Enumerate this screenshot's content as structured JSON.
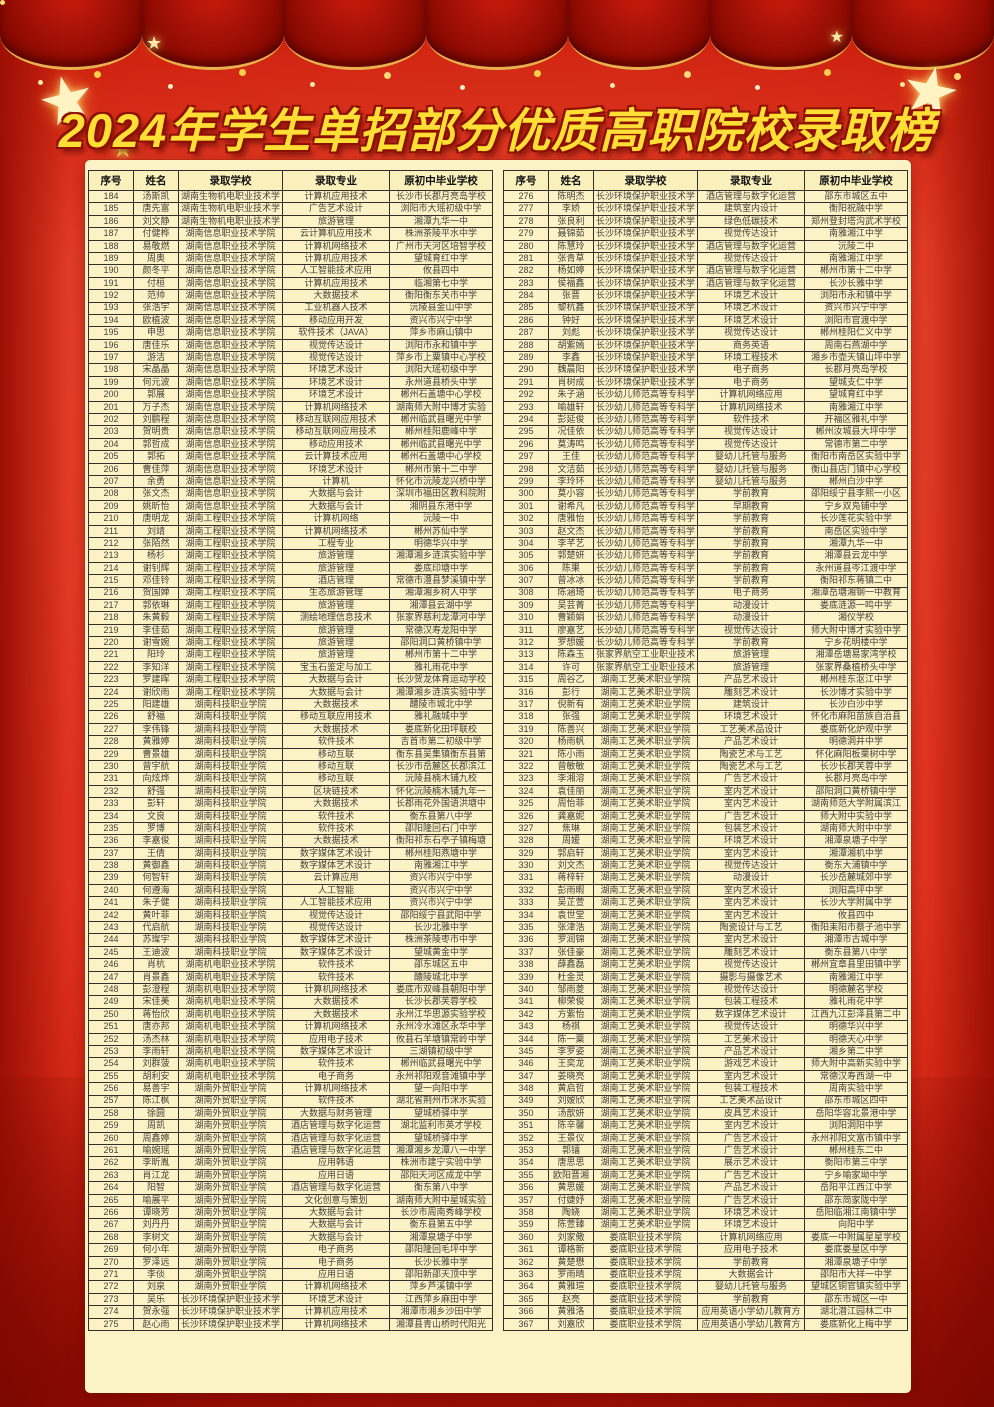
{
  "title": "2024年学生单招部分优质高职院校录取榜",
  "colors": {
    "background_red": "#e03522",
    "curtain_red": "#8c0a02",
    "panel_yellow": "#fbf3c6",
    "title_yellow": "#ffdf35",
    "gold_trim": "#e9b14e",
    "table_border": "#33302b"
  },
  "table_headers": [
    "序号",
    "姓名",
    "录取学校",
    "录取专业",
    "原初中毕业学校"
  ],
  "left_rows": [
    [
      "184",
      "汤斯凯",
      "湖南生物机电职业技术学",
      "计算机应用技术",
      "长沙市长郡月亮岛学校"
    ],
    [
      "185",
      "唐先富",
      "湖南生物机电职业技术学",
      "广告艺术设计",
      "浏阳市大瑶初级中学"
    ],
    [
      "186",
      "刘文静",
      "湖南生物机电职业技术学",
      "旅游管理",
      "湘潭九华一中"
    ],
    [
      "187",
      "付健桦",
      "湖南信息职业技术学院",
      "云计算机应用技术",
      "株洲茶陵平水中学"
    ],
    [
      "188",
      "易敬燃",
      "湖南信息职业技术学院",
      "计算机网络技术",
      "广州市天河区培智学校"
    ],
    [
      "189",
      "周奥",
      "湖南信息职业技术学院",
      "计算机应用技术",
      "望城育红中学"
    ],
    [
      "190",
      "颜冬平",
      "湖南信息职业技术学院",
      "人工智能技术应用",
      "攸县四中"
    ],
    [
      "191",
      "付桓",
      "湖南信息职业技术学院",
      "计算机应用技术",
      "临湘第七中学"
    ],
    [
      "192",
      "范帅",
      "湖南信息职业技术学院",
      "大数据技术",
      "衡阳衡东关市中学"
    ],
    [
      "193",
      "张浩宇",
      "湖南信息职业技术学院",
      "工业机器人技术",
      "沅陵县金山中学"
    ],
    [
      "194",
      "欧植波",
      "湖南信息职业技术学院",
      "移动应用开发",
      "资兴市兴宁中学"
    ],
    [
      "195",
      "申思",
      "湖南信息职业技术学院",
      "软件技术（JAVA）",
      "萍乡市麻山镇中"
    ],
    [
      "196",
      "唐佳乐",
      "湖南信息职业技术学院",
      "视觉传达设计",
      "浏阳市永和镇中学"
    ],
    [
      "197",
      "游洁",
      "湖南信息职业技术学院",
      "视觉传达设计",
      "萍乡市上粟镇中心学校"
    ],
    [
      "198",
      "宋晶晶",
      "湖南信息职业技术学院",
      "环境艺术设计",
      "浏阳大瑶初级中学"
    ],
    [
      "199",
      "何元波",
      "湖南信息职业技术学院",
      "环境艺术设计",
      "永州道县桥头中学"
    ],
    [
      "200",
      "郭展",
      "湖南信息职业技术学院",
      "环境艺术设计",
      "郴州石盖塘中心学校"
    ],
    [
      "201",
      "万子杰",
      "湖南信息职业技术学院",
      "计算机网络技术",
      "湖南师大附中博才实验"
    ],
    [
      "202",
      "刘鹏程",
      "湖南信息职业技术学院",
      "移动互联网应用技术",
      "郴州临武县曙光中学"
    ],
    [
      "203",
      "贺明贵",
      "湖南信息职业技术学院",
      "移动互联网应用技术",
      "郴州桂阳鹿峰中学"
    ],
    [
      "204",
      "郭哲成",
      "湖南信息职业技术学院",
      "移动应用技术",
      "郴州临武县曙光中学"
    ],
    [
      "205",
      "郭拓",
      "湖南信息职业技术学院",
      "云计算技术应用",
      "郴州石盖塘中心学校"
    ],
    [
      "206",
      "曹佳萍",
      "湖南信息职业技术学院",
      "环境艺术设计",
      "郴州市第十二中学"
    ],
    [
      "207",
      "余勇",
      "湖南信息职业技术学院",
      "计算机",
      "怀化市沅陵龙兴桥中学"
    ],
    [
      "208",
      "张文杰",
      "湖南信息职业技术学院",
      "大数据与会计",
      "深圳市福田区教科院附"
    ],
    [
      "209",
      "姚昕怡",
      "湖南信息职业技术学院",
      "大数据与会计",
      "湘阴县东港中学"
    ],
    [
      "210",
      "唐明龙",
      "湖南工程职业技术学院",
      "计算机网络",
      "沅陵一中"
    ],
    [
      "211",
      "刘靖",
      "湖南工程职业技术学院",
      "计算机网络技术",
      "郴州苏仙中学"
    ],
    [
      "212",
      "张陌然",
      "湖南工程职业技术学院",
      "工程专业",
      "明德华兴中学"
    ],
    [
      "213",
      "杨杉",
      "湖南工程职业技术学院",
      "旅游管理",
      "湘潭湘乡涟滨实验中学"
    ],
    [
      "214",
      "谢钊辉",
      "湖南工程职业技术学院",
      "旅游管理",
      "娄底印塘中学"
    ],
    [
      "215",
      "邓佳铃",
      "湖南工程职业技术学院",
      "酒店管理",
      "常德市澧县梦溪镇中学"
    ],
    [
      "216",
      "贺国婵",
      "湖南工程职业技术学院",
      "生态旅游管理",
      "湘潭湘乡树人中学"
    ],
    [
      "217",
      "郭依琳",
      "湖南工程职业技术学院",
      "旅游管理",
      "湘潭县云湖中学"
    ],
    [
      "218",
      "朱黄毅",
      "湖南工程职业技术学院",
      "测绘地理信息技术",
      "张家界慈利龙潭河中学"
    ],
    [
      "219",
      "李佳茹",
      "湖南工程职业技术学院",
      "旅游管理",
      "常德汉寿龙阳中学"
    ],
    [
      "220",
      "谢雪婉",
      "湖南工程职业技术学院",
      "旅游管理",
      "邵阳洞口黄桥镇中学"
    ],
    [
      "221",
      "阳玲",
      "湖南工程职业技术学院",
      "旅游管理",
      "郴州市第十二中学"
    ],
    [
      "222",
      "李知洋",
      "湖南工程职业技术学院",
      "宝玉石鉴定与加工",
      "雅礼雨花中学"
    ],
    [
      "223",
      "罗建晖",
      "湖南工程职业技术学院",
      "大数据与会计",
      "长沙贺龙体育运动学校"
    ],
    [
      "224",
      "谢欣雨",
      "湖南工程职业技术学院",
      "大数据与会计",
      "湘潭湘乡涟滨实验中学"
    ],
    [
      "225",
      "阳建雄",
      "湖南科技职业学院",
      "大数据技术",
      "醴陵市城北中学"
    ],
    [
      "226",
      "舒福",
      "湖南科技职业学院",
      "移动互联应用技术",
      "雅礼融城中学"
    ],
    [
      "227",
      "李伟锋",
      "湖南科技职业学院",
      "大数据技术",
      "娄底新化田坪联校"
    ],
    [
      "228",
      "黄雅婷",
      "湖南科技职业学院",
      "软件技术",
      "吉首市第二初级中学"
    ],
    [
      "229",
      "曹景雄",
      "湖南科技职业学院",
      "移动互联",
      "衡东县吴集镇衡东县第"
    ],
    [
      "230",
      "曾宇航",
      "湖南科技职业学院",
      "移动互联",
      "长沙市岳麓区长郡滨江"
    ],
    [
      "231",
      "向炫烨",
      "湖南科技职业学院",
      "移动互联",
      "沅陵县楠木铺九校"
    ],
    [
      "232",
      "舒强",
      "湖南科技职业学院",
      "区块链技术",
      "怀化沅陵楠木铺九年一"
    ],
    [
      "233",
      "彭轩",
      "湖南科技职业学院",
      "大数据技术",
      "长郡雨花外国语洪塘中"
    ],
    [
      "234",
      "文良",
      "湖南科技职业学院",
      "软件技术",
      "衡东县第八中学"
    ],
    [
      "235",
      "罗博",
      "湖南科技职业学院",
      "软件技术",
      "邵阳隆回石门中学"
    ],
    [
      "236",
      "李嘉俊",
      "湖南科技职业学院",
      "大数据技术",
      "衡阳祁东石亭子镇梅塘"
    ],
    [
      "237",
      "王倩",
      "湖南科技职业学院",
      "数字媒体艺术设计",
      "郴州桂阳燕塘中学"
    ],
    [
      "238",
      "黄御鑫",
      "湖南科技职业学院",
      "数字媒体艺术设计",
      "南雅湘江中学"
    ],
    [
      "239",
      "何智轩",
      "湖南科技职业学院",
      "云计算应用",
      "资兴市兴宁中学"
    ],
    [
      "240",
      "何遵海",
      "湖南科技职业学院",
      "人工智能",
      "资兴市兴宁中学"
    ],
    [
      "241",
      "朱子健",
      "湖南科技职业学院",
      "人工智能技术应用",
      "资兴市兴宁中学"
    ],
    [
      "242",
      "黄叶菲",
      "湖南科技职业学院",
      "视觉传达设计",
      "邵阳绥宁县武阳中学"
    ],
    [
      "243",
      "代启航",
      "湖南科技职业学院",
      "视觉传达设计",
      "长沙北雅中学"
    ],
    [
      "244",
      "苏璨宇",
      "湖南科技职业学院",
      "数字媒体艺术设计",
      "株洲茶陵枣市中学"
    ],
    [
      "245",
      "王迪波",
      "湖南科技职业学院",
      "数字媒体艺术设计",
      "望城黄金中学"
    ],
    [
      "246",
      "肖杭",
      "湖南机电职业技术学院",
      "软件技术",
      "邵东城区五中"
    ],
    [
      "247",
      "肖景鑫",
      "湖南机电职业技术学院",
      "软件技术",
      "醴陵城北中学"
    ],
    [
      "248",
      "彭澄程",
      "湖南机电职业技术学院",
      "计算机网络技术",
      "娄底市双峰县朝阳中学"
    ],
    [
      "249",
      "宋佳美",
      "湖南机电职业技术学院",
      "大数据技术",
      "长沙长郡芙蓉学校"
    ],
    [
      "250",
      "蒋怡欣",
      "湖南机电职业技术学院",
      "大数据技术",
      "永州江华思源实验学校"
    ],
    [
      "251",
      "唐亦邦",
      "湖南机电职业技术学院",
      "计算机网络技术",
      "永州冷水滩区永华中学"
    ],
    [
      "252",
      "汤杰林",
      "湖南机电职业技术学院",
      "应用电子技术",
      "攸县石羊塘镇常岭中学"
    ],
    [
      "253",
      "李雨轩",
      "湖南机电职业技术学院",
      "数字媒体艺术设计",
      "三湖镇初级中学"
    ],
    [
      "254",
      "刘群菠",
      "湖南机电职业技术学院",
      "软件技术",
      "郴州临武县曙光中学"
    ],
    [
      "255",
      "胡利安",
      "湖南机电职业技术学院",
      "电子商务",
      "永州祁阳观音滩镇中学"
    ],
    [
      "256",
      "易善宇",
      "湖南外贸职业学院",
      "计算机网络技术",
      "望一向阳中学"
    ],
    [
      "257",
      "陈江枫",
      "湖南外贸职业学院",
      "软件技术",
      "湖北省荆州市洣水实验"
    ],
    [
      "258",
      "徐圆",
      "湖南外贸职业学院",
      "大数据与财务管理",
      "望城桥驿中学"
    ],
    [
      "259",
      "周凯",
      "湖南外贸职业学院",
      "酒店管理与数字化运营",
      "湖北监利市英才学校"
    ],
    [
      "260",
      "周鑫婷",
      "湖南外贸职业学院",
      "酒店管理与数字化运营",
      "望城桥驿中学"
    ],
    [
      "261",
      "喻婉瑶",
      "湖南外贸职业学院",
      "酒店管理与数字化运营",
      "湘潭湘乡龙潭八一中学"
    ],
    [
      "262",
      "李昕胤",
      "湖南外贸职业学院",
      "应用韩语",
      "株洲市建宁实验中学"
    ],
    [
      "263",
      "肖江龙",
      "湖南外贸职业学院",
      "应用日语",
      "邵阳天河区成龙中学"
    ],
    [
      "264",
      "阳智",
      "湖南外贸职业学院",
      "酒店管理与数字化运营",
      "衡东第八中学"
    ],
    [
      "265",
      "喻展平",
      "湖南外贸职业学院",
      "文化创意与策划",
      "湖南师大附中星城实验"
    ],
    [
      "266",
      "谭晓芳",
      "湖南外贸职业学院",
      "大数据与会计",
      "长沙市周南秀峰学校"
    ],
    [
      "267",
      "刘丹丹",
      "湖南外贸职业学院",
      "大数据与会计",
      "衡东县第五中学"
    ],
    [
      "268",
      "李树文",
      "湖南外贸职业学院",
      "大数据与会计",
      "湘潭泉塘子中学"
    ],
    [
      "269",
      "何小年",
      "湖南外贸职业学院",
      "电子商务",
      "邵阳隆回毛坪中学"
    ],
    [
      "270",
      "罗泽远",
      "湖南外贸职业学院",
      "电子商务",
      "长沙长雅中学"
    ],
    [
      "271",
      "李倓",
      "湖南外贸职业学院",
      "应用日语",
      "邵阳新邵天顶中学"
    ],
    [
      "272",
      "刘泉",
      "湖南外贸职业学院",
      "计算机网络技术",
      "萍乡芦溪镇中学"
    ],
    [
      "273",
      "吴乐",
      "长沙环境保护职业技术学",
      "环境艺术设计",
      "江西萍乡麻田中学"
    ],
    [
      "274",
      "贺永强",
      "长沙环境保护职业技术学",
      "计算机应用技术",
      "湘潭市湘乡沙田中学"
    ],
    [
      "275",
      "赵心雨",
      "长沙环境保护职业技术学",
      "计算机网络技术",
      "湘潭县青山桥时代阳光"
    ]
  ],
  "right_rows": [
    [
      "276",
      "陈明杰",
      "长沙环境保护职业技术学",
      "酒店管理与数字化运营",
      "邵东市城区五中"
    ],
    [
      "277",
      "李娇",
      "长沙环境保护职业技术学",
      "建筑室内设计",
      "衡阳祝融中学"
    ],
    [
      "278",
      "张良利",
      "长沙环境保护职业技术学",
      "绿色低碳技术",
      "郑州登封塔沟武术学校"
    ],
    [
      "279",
      "聂锦茹",
      "长沙环境保护职业技术学",
      "视觉传达设计",
      "南雅湘江中学"
    ],
    [
      "280",
      "陈慧玲",
      "长沙环境保护职业技术学",
      "酒店管理与数字化运营",
      "沅陵二中"
    ],
    [
      "281",
      "张青草",
      "长沙环境保护职业技术学",
      "视觉传达设计",
      "南雅湘江中学"
    ],
    [
      "282",
      "杨如婷",
      "长沙环境保护职业技术学",
      "酒店管理与数字化运营",
      "郴州市第十二中学"
    ],
    [
      "283",
      "侯福鑫",
      "长沙环境保护职业技术学",
      "酒店管理与数字化运营",
      "长沙长雅中学"
    ],
    [
      "284",
      "张晋",
      "长沙环境保护职业技术学",
      "环境艺术设计",
      "浏阳市永和镇中学"
    ],
    [
      "285",
      "黎杭鑫",
      "长沙环境保护职业技术学",
      "环境艺术设计",
      "资兴市兴宁中学"
    ],
    [
      "286",
      "钟好",
      "长沙环境保护职业技术学",
      "环境艺术设计",
      "浏阳市官渡中学"
    ],
    [
      "287",
      "刘彪",
      "长沙环境保护职业技术学",
      "视觉传达设计",
      "郴州桂阳仁义中学"
    ],
    [
      "288",
      "胡紫嫣",
      "长沙环境保护职业技术学",
      "商务英语",
      "周南石燕湖中学"
    ],
    [
      "289",
      "李鑫",
      "长沙环境保护职业技术学",
      "环境工程技术",
      "湘乡市壶天镇山坪中学"
    ],
    [
      "290",
      "魏晨阳",
      "长沙环境保护职业技术学",
      "电子商务",
      "长郡月亮岛学校"
    ],
    [
      "291",
      "肖树成",
      "长沙环境保护职业技术学",
      "电子商务",
      "望城支仁中学"
    ],
    [
      "292",
      "朱子涵",
      "长沙幼儿师范高等专科学",
      "计算机网络应用",
      "望城育红中学"
    ],
    [
      "293",
      "喻雄轩",
      "长沙幼儿师范高等专科学",
      "计算机网络技术",
      "南雅湘江中学"
    ],
    [
      "294",
      "彭延俊",
      "长沙幼儿师范高等专科学",
      "软件技术",
      "开福区雅礼中学"
    ],
    [
      "295",
      "况佳依",
      "长沙幼儿师范高等专科学",
      "视觉传达设计",
      "郴州汝城县大坪中学"
    ],
    [
      "296",
      "莫涛鸣",
      "长沙幼儿师范高等专科学",
      "视觉传达设计",
      "常德市第二中学"
    ],
    [
      "297",
      "王佳",
      "长沙幼儿师范高等专科学",
      "婴幼儿托管与服务",
      "衡阳市南岳区实验中学"
    ],
    [
      "298",
      "文洁茹",
      "长沙幼儿师范高等专科学",
      "婴幼儿托管与服务",
      "衡山县店门镇中心学校"
    ],
    [
      "299",
      "李玲环",
      "长沙幼儿师范高等专科学",
      "婴幼儿托管与服务",
      "郴州白沙中学"
    ],
    [
      "300",
      "莫小容",
      "长沙幼儿师范高等专科学",
      "学前教育",
      "邵阳绥宁县李熙一小区"
    ],
    [
      "301",
      "谢希凡",
      "长沙幼儿师范高等专科学",
      "早期教育",
      "宁乡双凫铺中学"
    ],
    [
      "302",
      "唐雅怡",
      "长沙幼儿师范高等专科学",
      "学前教育",
      "长沙莲花实验中学"
    ],
    [
      "303",
      "赵文杰",
      "长沙幼儿师范高等专科学",
      "学前教育",
      "南岳区实验中学"
    ],
    [
      "304",
      "李芊艺",
      "长沙幼儿师范高等专科学",
      "学前教育",
      "湘潭九华一中"
    ],
    [
      "305",
      "郭楚妍",
      "长沙幼儿师范高等专科学",
      "学前教育",
      "湘潭县云龙中学"
    ],
    [
      "306",
      "陈果",
      "长沙幼儿师范高等专科学",
      "学前教育",
      "永州道县岑江渡中学"
    ],
    [
      "307",
      "曾冰冰",
      "长沙幼儿师范高等专科学",
      "学前教育",
      "衡阳祁东蒋镇二中"
    ],
    [
      "308",
      "陈涵琦",
      "长沙幼儿师范高等专科学",
      "电子商务",
      "湘潭岳塘湘钢一中教育"
    ],
    [
      "309",
      "吴芸菁",
      "长沙幼儿师范高等专科学",
      "动漫设计",
      "娄底涟源一鸣中学"
    ],
    [
      "310",
      "曹颖娟",
      "长沙幼儿师范高等专科学",
      "动漫设计",
      "湘仪学校"
    ],
    [
      "311",
      "廖嘉艺",
      "长沙幼儿师范高等专科学",
      "视觉传达设计",
      "师大附中博才实验中学"
    ],
    [
      "312",
      "罗想媛",
      "长沙幼儿师范高等专科学",
      "学前教育",
      "宁乡花明楼中学"
    ],
    [
      "313",
      "陈森玉",
      "张家界航空工业职业技术",
      "旅游管理",
      "湘潭岳塘易家湾学校"
    ],
    [
      "314",
      "许可",
      "张家界航空工业职业技术",
      "旅游管理",
      "张家界桑植桥头中学"
    ],
    [
      "315",
      "周谷乙",
      "湖南工艺美术职业学院",
      "产品艺术设计",
      "郴州桂东沤江中学"
    ],
    [
      "316",
      "彭行",
      "湖南工艺美术职业学院",
      "雕刻艺术设计",
      "长沙博才实验中学"
    ],
    [
      "317",
      "倪新有",
      "湖南工艺美术职业学院",
      "建筑设计",
      "长沙白沙中学"
    ],
    [
      "318",
      "张强",
      "湖南工艺美术职业学院",
      "环境艺术设计",
      "怀化市麻阳苗族自治县"
    ],
    [
      "319",
      "陈善兴",
      "湖南工艺美术职业学院",
      "工艺美术品设计",
      "娄底新化炉观中学"
    ],
    [
      "320",
      "杨雨帆",
      "湖南工艺美术职业学院",
      "产品艺术设计",
      "明德洞井中学"
    ],
    [
      "321",
      "陈小雨",
      "湖南工艺美术职业学院",
      "陶瓷艺术与工艺",
      "怀化麻阳板栗树中学"
    ],
    [
      "322",
      "曾敏敏",
      "湖南工艺美术职业学院",
      "陶瓷艺术与工艺",
      "长沙长郡芙蓉中学"
    ],
    [
      "323",
      "李湘溶",
      "湖南工艺美术职业学院",
      "广告艺术设计",
      "长郡月亮岛中学"
    ],
    [
      "324",
      "袁佳丽",
      "湖南工艺美术职业学院",
      "室内艺术设计",
      "邵阳洞口黄桥镇中学"
    ],
    [
      "325",
      "周怡菲",
      "湖南工艺美术职业学院",
      "室内艺术设计",
      "湖南师范大学附属滨江"
    ],
    [
      "326",
      "龚嘉妮",
      "湖南工艺美术职业学院",
      "广告艺术设计",
      "师大附中实验中学"
    ],
    [
      "327",
      "焦琳",
      "湖南工艺美术职业学院",
      "包装艺术设计",
      "湖南师大附中中学"
    ],
    [
      "328",
      "周媛",
      "湖南工艺美术职业学院",
      "环境艺术设计",
      "湘潭泉塘子中学"
    ],
    [
      "329",
      "郭启轩",
      "湖南工艺美术职业学院",
      "室内艺术设计",
      "湘潭湘机中学"
    ],
    [
      "330",
      "刘文杰",
      "湖南工艺美术职业学院",
      "视觉传达设计",
      "衡东大浦镇中学"
    ],
    [
      "331",
      "蒋梓轩",
      "湖南工艺美术职业学院",
      "动漫设计",
      "长沙岳麓城郊中学"
    ],
    [
      "332",
      "彭雨暇",
      "湖南工艺美术职业学院",
      "室内艺术设计",
      "浏阳高坪中学"
    ],
    [
      "333",
      "吴芷萱",
      "湖南工艺美术职业学院",
      "室内艺术设计",
      "长沙大学附属中学"
    ],
    [
      "334",
      "袁世堂",
      "湖南工艺美术职业学院",
      "室内艺术设计",
      "攸县四中"
    ],
    [
      "335",
      "张津浩",
      "湖南工艺美术职业学院",
      "陶瓷设计与工艺",
      "衡阳耒阳市蔡子池中学"
    ],
    [
      "336",
      "罗润锦",
      "湖南工艺美术职业学院",
      "室内艺术设计",
      "湘潭市古城中学"
    ],
    [
      "337",
      "张佳豪",
      "湖南工艺美术职业学院",
      "雕刻艺术设计",
      "衡东县第八中学"
    ],
    [
      "338",
      "薛鑫磊",
      "湖南工艺美术职业学院",
      "视觉传达设计",
      "郴州宜章县里田镇中学"
    ],
    [
      "339",
      "杜金灵",
      "湖南工艺美术职业学院",
      "摄影与摄像艺术",
      "南雅湘江中学"
    ],
    [
      "340",
      "邹雨菱",
      "湖南工艺美术职业学院",
      "视觉传达设计",
      "明德麓名学校"
    ],
    [
      "341",
      "柳荣俊",
      "湖南工艺美术职业学院",
      "包装工程技术",
      "雅礼雨花中学"
    ],
    [
      "342",
      "方紫怡",
      "湖南工艺美术职业学院",
      "数字媒体艺术设计",
      "江西九江彭泽县第二中"
    ],
    [
      "343",
      "杨祺",
      "湖南工艺美术职业学院",
      "视觉传达设计",
      "明德华兴中学"
    ],
    [
      "344",
      "陈一粟",
      "湖南工艺美术职业学院",
      "工艺美术设计",
      "明德天心中学"
    ],
    [
      "345",
      "李罗姿",
      "湖南工艺美术职业学院",
      "产品艺术设计",
      "湘乡第二中学"
    ],
    [
      "346",
      "王奕龙",
      "湖南工艺美术职业学院",
      "游戏艺术设计",
      "师大附中高新实验中学"
    ],
    [
      "347",
      "姜晓亮",
      "湖南工艺美术职业学院",
      "室内艺术设计",
      "常德汉寿西湖一中"
    ],
    [
      "348",
      "黄启哲",
      "湖南工艺美术职业学院",
      "包装工程技术",
      "周南实验中学"
    ],
    [
      "349",
      "刘嫒欣",
      "湖南工艺美术职业学院",
      "工艺美术品设计",
      "邵东市城区四中"
    ],
    [
      "350",
      "汤歆妍",
      "湖南工艺美术职业学院",
      "皮具艺术设计",
      "岳阳华容北景港中学"
    ],
    [
      "351",
      "陈辛馨",
      "湖南工艺美术职业学院",
      "室内艺术设计",
      "浏阳洞阳中学"
    ],
    [
      "352",
      "王景仪",
      "湖南工艺美术职业学院",
      "广告艺术设计",
      "永州祁阳文富市镇中学"
    ],
    [
      "353",
      "郭镭",
      "湖南工艺美术职业学院",
      "广告艺术设计",
      "郴州桂东二中"
    ],
    [
      "354",
      "唐思思",
      "湖南工艺美术职业学院",
      "展示艺术设计",
      "衡阳市第三中学"
    ],
    [
      "355",
      "欧阳晋湘",
      "湖南工艺美术职业学院",
      "广告艺术设计",
      "宁乡喻家坳中学"
    ],
    [
      "356",
      "黄思媛",
      "湖南工艺美术职业学院",
      "产品艺术设计",
      "岳阳平江西江中学"
    ],
    [
      "357",
      "付婕妤",
      "湖南工艺美术职业学院",
      "广告艺术设计",
      "邵东简家陇中学"
    ],
    [
      "358",
      "陶娆",
      "湖南工艺美术职业学院",
      "环境艺术设计",
      "岳阳临湘江南镇中学"
    ],
    [
      "359",
      "陈萱臻",
      "湖南工艺美术职业学院",
      "环境艺术设计",
      "向阳中学"
    ],
    [
      "360",
      "刘家儆",
      "娄底职业技术学院",
      "计算机网络应用",
      "娄底一中附属星星学校"
    ],
    [
      "361",
      "谭格新",
      "娄底职业技术学院",
      "应用电子技术",
      "娄底娄星区中学"
    ],
    [
      "362",
      "黄楚懋",
      "娄底职业技术学院",
      "学前教育",
      "湘潭泉塘子中学"
    ],
    [
      "363",
      "罗雨晴",
      "娄底职业技术学院",
      "大数据会计",
      "邵阳市大祥一中学"
    ],
    [
      "364",
      "黄雅瑄",
      "娄底职业技术学院",
      "婴幼儿托管与服务",
      "望城区铜官镇实验中学"
    ],
    [
      "365",
      "赵亮",
      "娄底职业技术学院",
      "学前教育",
      "邵东市城区一中"
    ],
    [
      "366",
      "黄雅洛",
      "娄底职业技术学院",
      "应用英语小学幼儿教育方",
      "湖北潜江园林二中"
    ],
    [
      "367",
      "刘嘉欣",
      "娄底职业技术学院",
      "应用英语小学幼儿教育方",
      "娄底新化上梅中学"
    ]
  ]
}
